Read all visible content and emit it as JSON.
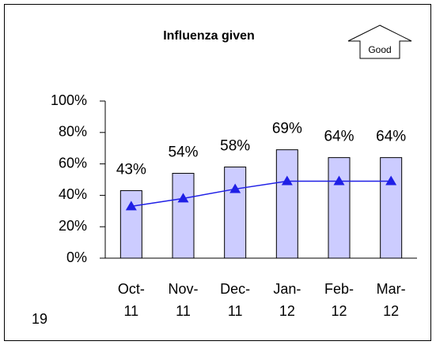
{
  "chart_data": {
    "type": "bar",
    "title": "Influenza given",
    "annotation": "Good",
    "footer": "19",
    "categories": [
      "Oct-11",
      "Nov-11",
      "Dec-11",
      "Jan-12",
      "Feb-12",
      "Mar-12"
    ],
    "series": [
      {
        "type": "bar",
        "color": "#ccccff",
        "values": [
          43,
          54,
          58,
          69,
          64,
          64
        ],
        "value_labels": [
          "43%",
          "54%",
          "58%",
          "69%",
          "64%",
          "64%"
        ]
      },
      {
        "type": "line",
        "color": "#1f1fe6",
        "values": [
          33,
          38,
          44,
          49,
          49,
          49
        ]
      }
    ],
    "ylim": [
      0,
      100
    ],
    "yticks": [
      {
        "value": 0,
        "label": "0%"
      },
      {
        "value": 20,
        "label": "20%"
      },
      {
        "value": 40,
        "label": "40%"
      },
      {
        "value": 60,
        "label": "60%"
      },
      {
        "value": 80,
        "label": "80%"
      },
      {
        "value": 100,
        "label": "100%"
      }
    ]
  }
}
